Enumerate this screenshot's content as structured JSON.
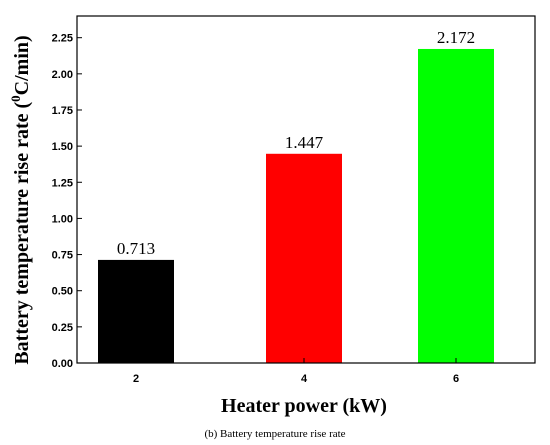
{
  "chart_data": {
    "type": "bar",
    "categories": [
      "2",
      "4",
      "6"
    ],
    "values": [
      0.713,
      1.447,
      2.172
    ],
    "data_labels": [
      "0.713",
      "1.447",
      "2.172"
    ],
    "bar_colors": [
      "#000000",
      "#ff0000",
      "#00ff00"
    ],
    "xlabel": "Heater power (kW)",
    "ylabel_main": "Battery temperature rise rate (",
    "ylabel_sup": "0",
    "ylabel_tail": "C/min)",
    "ylim": [
      0,
      2.4
    ],
    "yticks": [
      "0.00",
      "0.25",
      "0.50",
      "0.75",
      "1.00",
      "1.25",
      "1.50",
      "1.75",
      "2.00",
      "2.25"
    ],
    "grid": false,
    "legend": "none"
  },
  "caption": "(b) Battery temperature rise rate"
}
